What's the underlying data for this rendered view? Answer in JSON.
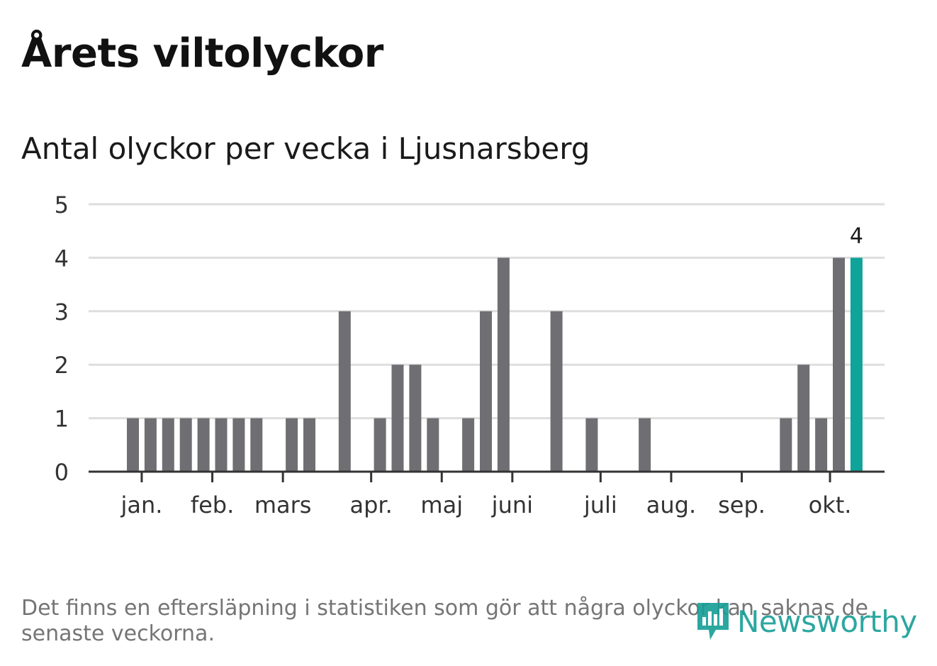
{
  "title": "Årets viltolyckor",
  "subtitle": "Antal olyckor per vecka i Ljusnarsberg",
  "footnote": "Det finns en eftersläpning i statistiken som gör att några olyckor kan saknas de senaste veckorna.",
  "logo": {
    "text": "Newsworthy",
    "icon": "bar-chart-speech-bubble-icon"
  },
  "colors": {
    "bar": "#6f6f73",
    "highlight": "#0fa39a",
    "grid": "#dedede",
    "axis": "#333333",
    "logo": "#169e96"
  },
  "chart_data": {
    "type": "bar",
    "title": "Antal olyckor per vecka i Ljusnarsberg",
    "xlabel": "",
    "ylabel": "",
    "ylim": [
      0,
      5
    ],
    "yticks": [
      0,
      1,
      2,
      3,
      4,
      5
    ],
    "grid": true,
    "weeks": [
      1,
      2,
      3,
      4,
      5,
      6,
      7,
      8,
      9,
      10,
      11,
      12,
      13,
      14,
      15,
      16,
      17,
      18,
      19,
      20,
      21,
      22,
      23,
      24,
      25,
      26,
      27,
      28,
      29,
      30,
      31,
      32,
      33,
      34,
      35,
      36,
      37,
      38,
      39,
      40,
      41,
      42
    ],
    "values": [
      1,
      1,
      1,
      1,
      1,
      1,
      1,
      1,
      0,
      1,
      1,
      0,
      3,
      0,
      1,
      2,
      2,
      1,
      0,
      1,
      3,
      4,
      0,
      0,
      3,
      0,
      1,
      0,
      0,
      1,
      0,
      0,
      0,
      0,
      0,
      0,
      0,
      1,
      2,
      1,
      4,
      4
    ],
    "highlight_index": 41,
    "highlight_label": "4",
    "month_ticks": [
      {
        "label": "jan.",
        "week": 1.5
      },
      {
        "label": "feb.",
        "week": 5.5
      },
      {
        "label": "mars",
        "week": 9.5
      },
      {
        "label": "apr.",
        "week": 14.5
      },
      {
        "label": "maj",
        "week": 18.5
      },
      {
        "label": "juni",
        "week": 22.5
      },
      {
        "label": "juli",
        "week": 27.5
      },
      {
        "label": "aug.",
        "week": 31.5
      },
      {
        "label": "sep.",
        "week": 35.5
      },
      {
        "label": "okt.",
        "week": 40.5
      }
    ]
  }
}
